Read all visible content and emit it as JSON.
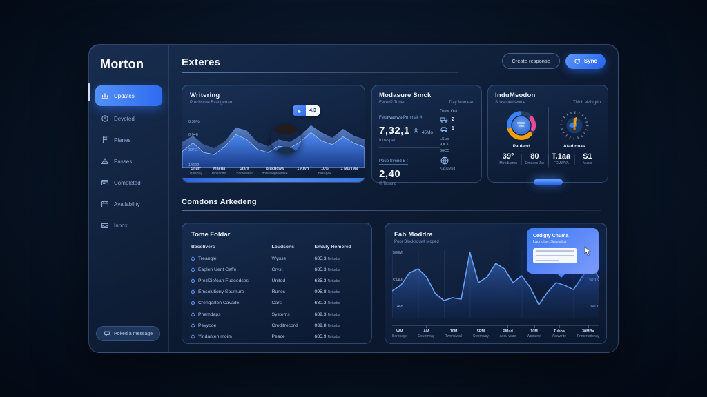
{
  "app": {
    "logo": "Morton"
  },
  "sidebar": {
    "items": [
      {
        "label": "Updates"
      },
      {
        "label": "Devoted"
      },
      {
        "label": "Planes"
      },
      {
        "label": "Passes"
      },
      {
        "label": "Completed"
      },
      {
        "label": "Availability"
      },
      {
        "label": "Inbox"
      }
    ],
    "footer_button": "Poked a message"
  },
  "header": {
    "title": "Exteres",
    "secondary_button": "Create response",
    "primary_button": "Sync"
  },
  "cards": {
    "engagement": {
      "title": "Writering",
      "subtitle": "Prechstote Evangertao",
      "toggle_value": "4.3",
      "y_labels": [
        "0.30%",
        "0.046",
        "30*11",
        "14622"
      ],
      "x_labels": [
        {
          "t": "Snuff",
          "b": "Tuesday"
        },
        {
          "t": "Maega",
          "b": "Blossoms"
        },
        {
          "t": "Stars",
          "b": "Somewhat"
        },
        {
          "t": "Blucudwa",
          "b": "dots indgroomse"
        },
        {
          "t": "1 Aryn",
          "b": ""
        },
        {
          "t": "10%",
          "b": "nasapak"
        },
        {
          "t": "1 Mu/T9N",
          "b": ""
        }
      ]
    },
    "measure": {
      "title": "Modasure Smck",
      "sub_left": "Faced? Tuned",
      "sub_right": "Tray Mordead",
      "metric1": {
        "label": "Fecawawwa-Prmmak #",
        "value": "7,32,1",
        "unit": "45Mo",
        "note": "Intrasped"
      },
      "fleet": {
        "label": "Drew Out",
        "rows": [
          {
            "count": "2"
          },
          {
            "count": "1"
          }
        ]
      },
      "metric2": {
        "label": "Poup Svend B t",
        "value": "2,40",
        "note": "© Tasand"
      },
      "codes": [
        "LSuid",
        "9 ICT",
        "66CC"
      ],
      "globe_label": "KasiuMud"
    },
    "motion": {
      "title": "InduMsodon",
      "sub_left": "Scasopud wotne",
      "sub_right": "TMch aMbtgdo",
      "gauge1_label": "Paulend",
      "gauge2_label": "Atadinnas",
      "stats": [
        {
          "value": "39°",
          "label": "Mrrsduanra"
        },
        {
          "value": "80",
          "label": "Omeacs Jay"
        },
        {
          "value": "T.1aa",
          "label": "FCMWVA"
        },
        {
          "value": "S1",
          "label": "Musta"
        }
      ]
    }
  },
  "section2": {
    "title": "Comdons Arkedeng"
  },
  "table_card": {
    "title": "Tome Foldar",
    "headers": [
      "Bacolivers",
      "Loudsons",
      "Emaily Homered"
    ],
    "rows": [
      {
        "name": "Treangle",
        "mid": "Wyuse",
        "value": "685.3",
        "unit": "Returbs"
      },
      {
        "name": "Eaglen Uent Caffe",
        "mid": "Cryst",
        "value": "685.3",
        "unit": "Returbs"
      },
      {
        "name": "PrezDiefoan Fudeodses",
        "mid": "United",
        "value": "635.3",
        "unit": "Returbs"
      },
      {
        "name": "Emsolutiony Soumure",
        "mid": "Runes",
        "value": "095.8",
        "unit": "Returbs"
      },
      {
        "name": "Crengarten Cavade",
        "mid": "Cars",
        "value": "680.3",
        "unit": "Returbs"
      },
      {
        "name": "Phemdaps",
        "mid": "Systems",
        "value": "689.3",
        "unit": "Returbs"
      },
      {
        "name": "Pevyooe",
        "mid": "Creditrecord",
        "value": "089.8",
        "unit": "Returbs"
      },
      {
        "name": "Yindanten moim",
        "mid": "Peace",
        "value": "685.9",
        "unit": "Returbs"
      }
    ]
  },
  "line_card": {
    "title": "Fab Moddra",
    "subtitle": "Poor Blocksduwt Moped",
    "y_labels": [
      "500M",
      "534M",
      "174M"
    ],
    "right_labels": [
      "150.16",
      "160.1"
    ],
    "tooltip": {
      "title": "Cedigty Chuma",
      "subtitle": "Laundtay, Smpaduk"
    },
    "x_labels": [
      {
        "t": "WM",
        "b": "Baronage"
      },
      {
        "t": "AM",
        "b": "Countrway"
      },
      {
        "t": "10M",
        "b": "Twonsiwall"
      },
      {
        "t": "5PM",
        "b": "Swornway"
      },
      {
        "t": "PMad",
        "b": "Accu-ware"
      },
      {
        "t": "10M",
        "b": "Wootanel"
      },
      {
        "t": "Tubba",
        "b": "Aawwrite"
      },
      {
        "t": "30MBa",
        "b": "Primertarishay"
      }
    ]
  },
  "chart_data": {
    "engagement_back": [
      0.5,
      0.62,
      0.45,
      0.38,
      0.52,
      0.78,
      0.72,
      0.5,
      0.42,
      0.55,
      0.5,
      0.62,
      0.82,
      0.68,
      0.58,
      0.75,
      0.62,
      0.55
    ],
    "engagement_front": [
      0.32,
      0.48,
      0.3,
      0.26,
      0.42,
      0.64,
      0.55,
      0.36,
      0.3,
      0.42,
      0.38,
      0.5,
      0.68,
      0.52,
      0.45,
      0.6,
      0.48,
      0.4
    ],
    "performance": [
      0.4,
      0.48,
      0.66,
      0.72,
      0.6,
      0.36,
      0.26,
      0.3,
      0.28,
      0.96,
      0.52,
      0.6,
      0.8,
      0.72,
      0.52,
      0.62,
      0.45,
      0.2,
      0.38,
      0.52,
      0.48,
      0.42,
      0.6,
      0.78,
      0.58
    ]
  }
}
